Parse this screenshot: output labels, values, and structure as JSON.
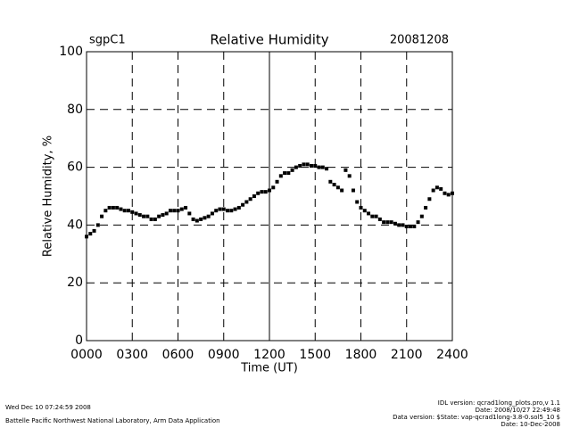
{
  "chart_data": {
    "type": "scatter",
    "title": "Relative Humidity",
    "site": "sgpC1",
    "date": "20081208",
    "ylabel": "Relative Humidity, %",
    "xlabel": "Time (UT)",
    "xlim": [
      0,
      24
    ],
    "ylim": [
      0,
      100
    ],
    "xticks": [
      {
        "value": 0,
        "label": "0000"
      },
      {
        "value": 3,
        "label": "0300"
      },
      {
        "value": 6,
        "label": "0600"
      },
      {
        "value": 9,
        "label": "0900"
      },
      {
        "value": 12,
        "label": "1200"
      },
      {
        "value": 15,
        "label": "1500"
      },
      {
        "value": 18,
        "label": "1800"
      },
      {
        "value": 21,
        "label": "2100"
      },
      {
        "value": 24,
        "label": "2400"
      }
    ],
    "yticks": [
      0,
      20,
      40,
      60,
      80,
      100
    ],
    "grid": true,
    "color": "#000000",
    "x": [
      0,
      0.25,
      0.5,
      0.75,
      1,
      1.25,
      1.5,
      1.75,
      2,
      2.25,
      2.5,
      2.75,
      3,
      3.25,
      3.5,
      3.75,
      4,
      4.25,
      4.5,
      4.75,
      5,
      5.25,
      5.5,
      5.75,
      6,
      6.25,
      6.5,
      6.75,
      7,
      7.25,
      7.5,
      7.75,
      8,
      8.25,
      8.5,
      8.75,
      9,
      9.25,
      9.5,
      9.75,
      10,
      10.25,
      10.5,
      10.75,
      11,
      11.25,
      11.5,
      11.75,
      12,
      12.25,
      12.5,
      12.75,
      13,
      13.25,
      13.5,
      13.75,
      14,
      14.25,
      14.5,
      14.75,
      15,
      15.25,
      15.5,
      15.75,
      16,
      16.25,
      16.5,
      16.75,
      17,
      17.25,
      17.5,
      17.75,
      18,
      18.25,
      18.5,
      18.75,
      19,
      19.25,
      19.5,
      19.75,
      20,
      20.25,
      20.5,
      20.75,
      21,
      21.25,
      21.5,
      21.75,
      22,
      22.25,
      22.5,
      22.75,
      23,
      23.25,
      23.5,
      23.75,
      24
    ],
    "values": [
      36,
      37,
      38,
      40,
      43,
      45,
      46,
      46,
      46,
      45.5,
      45,
      45,
      44.5,
      44,
      43.5,
      43,
      43,
      42,
      42,
      43,
      43.5,
      44,
      45,
      45,
      45,
      45.5,
      46,
      44,
      42,
      41.5,
      42,
      42.5,
      43,
      44,
      45,
      45.5,
      45.5,
      45,
      45,
      45.5,
      46,
      47,
      48,
      49,
      50,
      51,
      51.5,
      51.5,
      52,
      53,
      55,
      57,
      58,
      58,
      59,
      60,
      60.5,
      61,
      61,
      60.5,
      60.5,
      60,
      60,
      59.5,
      55,
      54,
      53,
      52,
      59,
      57,
      52,
      48,
      46,
      45,
      44,
      43,
      43,
      42,
      41,
      41,
      41,
      40.5,
      40,
      40,
      39.5,
      39.5,
      39.5,
      41,
      43,
      46,
      49,
      52,
      53,
      52.5,
      51,
      50.5,
      51
    ],
    "footer_left": [
      "Wed Dec 10 07:24:59 2008",
      "Battelle Pacific Northwest National Laboratory, Arm Data Application"
    ],
    "footer_right": [
      "IDL version: qcrad1long_plots.pro,v 1.1",
      "Date: 2008/10/27 22:49:48",
      "Data version: $State: vap-qcrad1long-3.8-0.sol5_10 $",
      "Date: 10-Dec-2008"
    ]
  }
}
